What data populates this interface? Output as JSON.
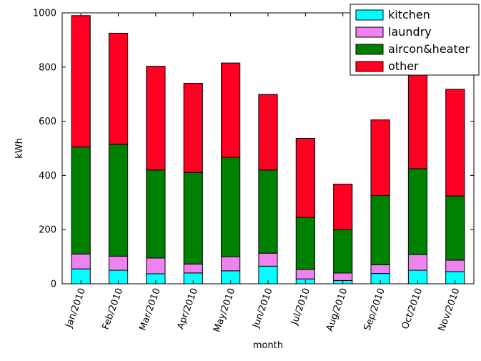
{
  "chart_data": {
    "type": "bar",
    "stacked": true,
    "title": "",
    "xlabel": "month",
    "ylabel": "kWh",
    "ylim": [
      0,
      1000
    ],
    "yticks": [
      0,
      200,
      400,
      600,
      800,
      1000
    ],
    "grid": false,
    "legend_position": "top-right",
    "categories": [
      "Jan/2010",
      "Feb/2010",
      "Mar/2010",
      "Apr/2010",
      "May/2010",
      "Jun/2010",
      "Jul/2010",
      "Aug/2010",
      "Sep/2010",
      "Oct/2010",
      "Nov/2010"
    ],
    "series": [
      {
        "name": "kitchen",
        "color": "#00ffff",
        "values": [
          55,
          50,
          37,
          40,
          48,
          65,
          18,
          12,
          38,
          50,
          45
        ]
      },
      {
        "name": "laundry",
        "color": "#ee82ee",
        "values": [
          55,
          52,
          58,
          33,
          52,
          48,
          35,
          28,
          32,
          58,
          42
        ]
      },
      {
        "name": "aircon&heater",
        "color": "#008000",
        "values": [
          395,
          413,
          325,
          338,
          367,
          307,
          192,
          160,
          256,
          317,
          237
        ]
      },
      {
        "name": "other",
        "color": "#ff0022",
        "values": [
          485,
          410,
          383,
          329,
          348,
          279,
          292,
          168,
          279,
          355,
          394
        ]
      }
    ]
  }
}
